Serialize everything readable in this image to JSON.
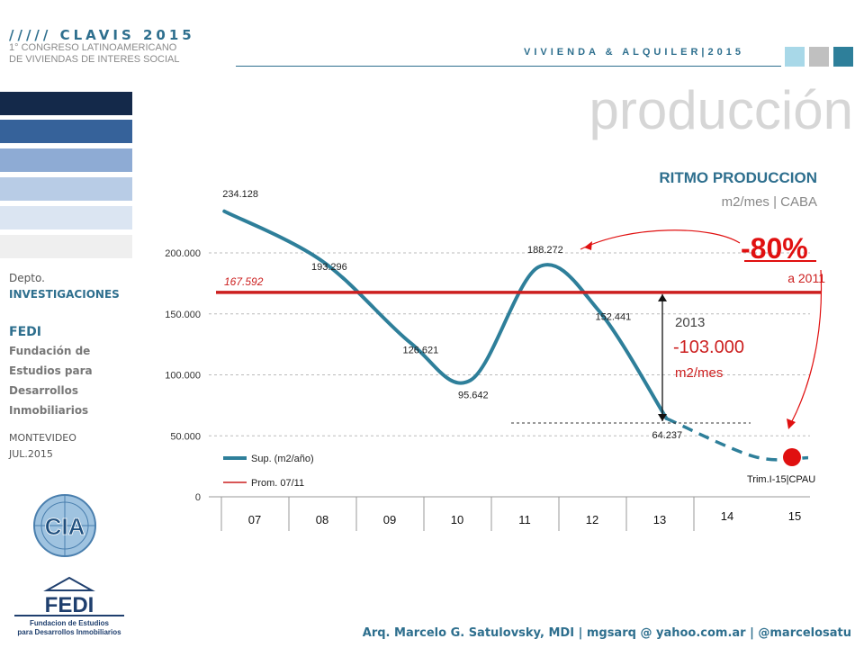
{
  "header": {
    "brand": "///// CLAVIS 2015",
    "brand_sub1": "1° CONGRESO LATINOAMERICANO",
    "brand_sub2": "DE VIVIENDAS DE INTERES SOCIAL",
    "right": "VIVIENDA & ALQUILER|2015",
    "box_colors": [
      "#a8d8e8",
      "#c0c0c0",
      "#2e7f9a"
    ]
  },
  "page_title": "producción",
  "sidebar": {
    "swatches": [
      "#14294a",
      "#36629a",
      "#8eabd4",
      "#b8cce6",
      "#dbe5f2",
      "#efefef"
    ],
    "dept_label": "Depto.",
    "dept_name": "INVESTIGACIONES",
    "org_short": "FEDI",
    "org_line1": "Fundación de",
    "org_line2": "Estudios para",
    "org_line3": "Desarrollos",
    "org_line4": "Inmobiliarios",
    "city": "MONTEVIDEO",
    "date": "JUL.2015",
    "logo1_text": "CIA",
    "logo2_text": "FEDI",
    "logo2_sub1": "Fundacion de Estudios",
    "logo2_sub2": "para Desarrollos Inmobiliarios"
  },
  "chart_data": {
    "type": "line",
    "title": "RITMO PRODUCCION",
    "subtitle": "m2/mes | CABA",
    "categories": [
      "07",
      "08",
      "09",
      "10",
      "11",
      "12",
      "13",
      "14",
      "15"
    ],
    "yticks": [
      "0",
      "50.000",
      "100.000",
      "150.000",
      "200.000"
    ],
    "ylim": [
      0,
      250000
    ],
    "series": [
      {
        "name": "Sup. (m2/año)",
        "color": "#2e7f9a",
        "points": [
          {
            "x": 6.55,
            "y": 234128,
            "label": "234.128"
          },
          {
            "x": 8.0,
            "y": 193296,
            "label": "193.296"
          },
          {
            "x": 9.3,
            "y": 126621,
            "label": "126.621"
          },
          {
            "x": 10.2,
            "y": 95642,
            "label": "95.642"
          },
          {
            "x": 11.2,
            "y": 188272,
            "label": "188.272"
          },
          {
            "x": 12.1,
            "y": 152441,
            "label": "152.441"
          },
          {
            "x": 13.1,
            "y": 64237,
            "label": "64.237"
          }
        ],
        "projection": [
          {
            "x": 13.1,
            "y": 64237
          },
          {
            "x": 14.4,
            "y": 33000
          },
          {
            "x": 15.2,
            "y": 32000
          }
        ]
      },
      {
        "name": "Prom. 07/11",
        "color": "#cc1f1f",
        "value": 167592,
        "label": "167.592"
      }
    ],
    "legend": "bottom-left",
    "grid": true,
    "annotations": {
      "drop_year": "2013",
      "drop_value": "-103.000",
      "drop_unit": "m2/mes",
      "pct": "-80%",
      "pct_note": "a 2011",
      "marker_label": "Trim.I-15|CPAU",
      "marker_color": "#e01010"
    }
  },
  "footer": {
    "text": "Arq. Marcelo G. Satulovsky, MDI | mgsarq @ yahoo.com.ar | @marcelosatu"
  }
}
